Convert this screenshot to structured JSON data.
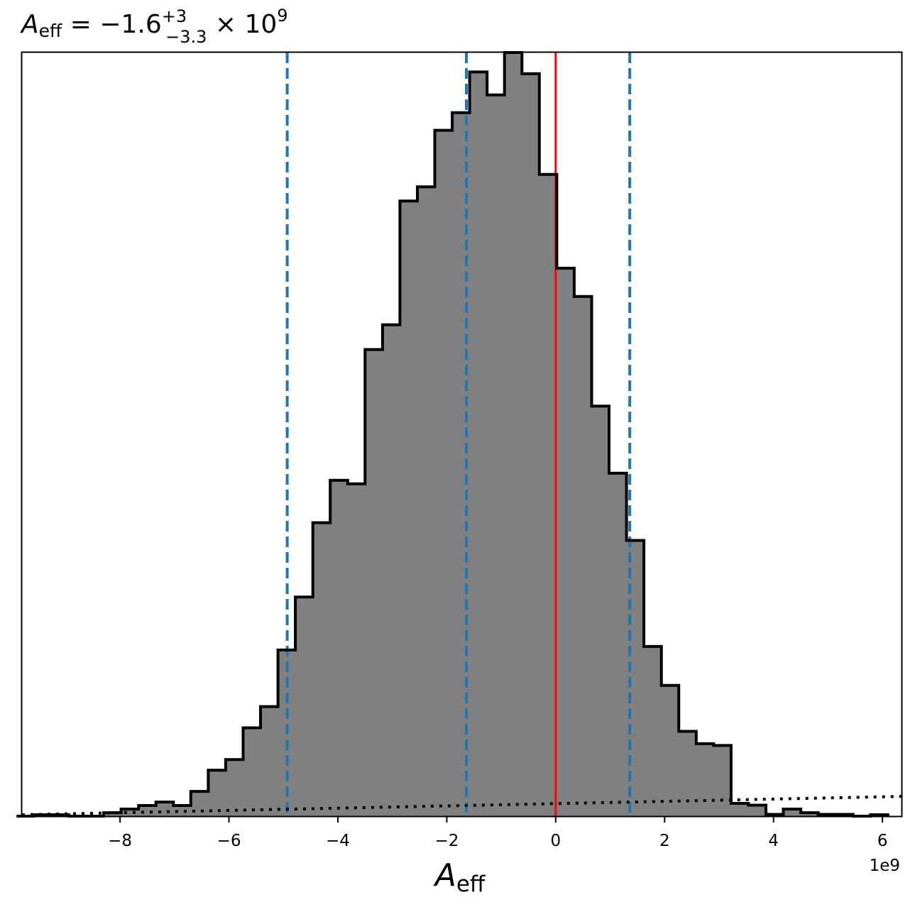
{
  "chart_data": {
    "type": "histogram",
    "title": {
      "symbol": "A",
      "symbol_sub": "eff",
      "equals": " = ",
      "median": "−1.6",
      "upper": "+3",
      "lower": "−3.3",
      "times": " × 10",
      "exponent": "9"
    },
    "xlabel": {
      "symbol": "A",
      "sub": "eff"
    },
    "x_offset_label": "1e9",
    "x_scale": 1000000000,
    "xlim": [
      -9.8,
      6.35
    ],
    "ylim": [
      0,
      1.0
    ],
    "yticks_visible": false,
    "grid": false,
    "x_ticks": [
      {
        "value": -8,
        "label": "−8"
      },
      {
        "value": -6,
        "label": "−6"
      },
      {
        "value": -4,
        "label": "−4"
      },
      {
        "value": -2,
        "label": "−2"
      },
      {
        "value": 0,
        "label": "0"
      },
      {
        "value": 2,
        "label": "2"
      },
      {
        "value": 4,
        "label": "4"
      },
      {
        "value": 6,
        "label": "6"
      }
    ],
    "bin_start": -9.9,
    "bin_width": 0.32,
    "counts": [
      0,
      0.0019,
      0.0019,
      0,
      0,
      0.0046,
      0.0093,
      0.0139,
      0.0185,
      0.0139,
      0.0324,
      0.0602,
      0.0741,
      0.1157,
      0.1435,
      0.2176,
      0.287,
      0.3843,
      0.4398,
      0.4352,
      0.6111,
      0.6435,
      0.8056,
      0.8241,
      0.8981,
      0.9213,
      0.9745,
      0.9444,
      1.0,
      0.9722,
      0.8403,
      0.7176,
      0.6806,
      0.537,
      0.4491,
      0.3611,
      0.2222,
      0.1713,
      0.1111,
      0.0949,
      0.0926,
      0.0167,
      0.0144,
      0.0023,
      0.0093,
      0.0046,
      0.0023,
      0.0023,
      0,
      0.0019
    ],
    "fill_color": "#808080",
    "edge_color": "#000000",
    "reference_line": {
      "x": 0,
      "color": "#ff0000"
    },
    "quantile_lines": {
      "x": [
        -4.93,
        -1.64,
        1.36
      ],
      "color": "#1f77b4",
      "style": "dashed"
    },
    "horizontal_dotted_line": {
      "y_start": 0.0019,
      "y_end": 0.0259,
      "color": "#000000"
    }
  }
}
